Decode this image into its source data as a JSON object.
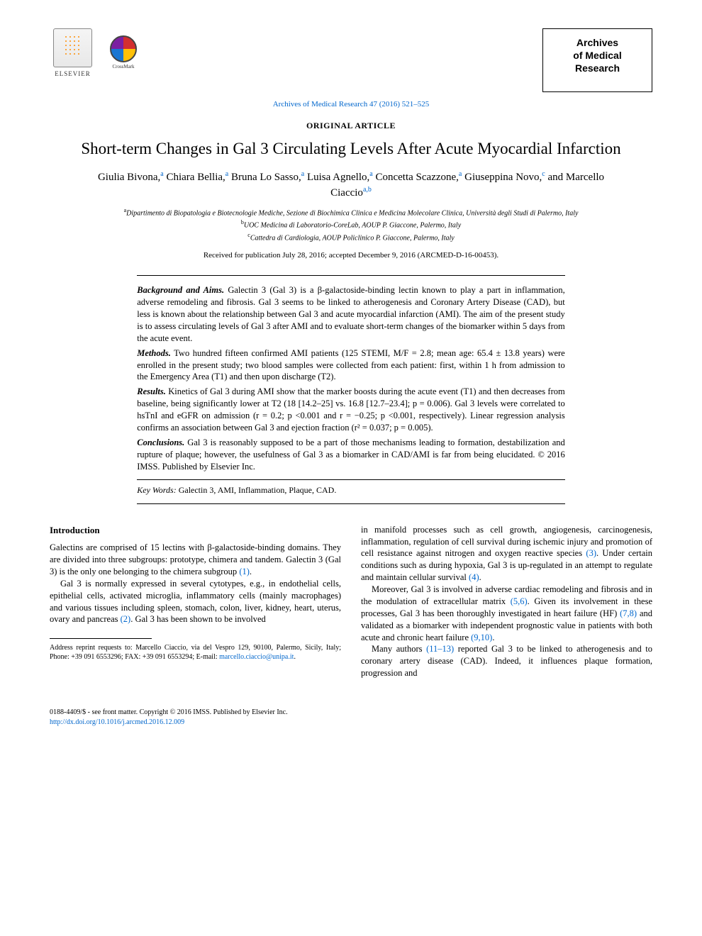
{
  "header": {
    "elsevier_label": "ELSEVIER",
    "crossmark_label": "CrossMark",
    "journal_box_lines": [
      "Archives",
      "of Medical",
      "Research"
    ],
    "citation": "Archives of Medical Research 47 (2016) 521–525"
  },
  "article": {
    "type": "ORIGINAL ARTICLE",
    "title": "Short-term Changes in Gal 3 Circulating Levels After Acute Myocardial Infarction",
    "authors_html": "Giulia Bivona,<sup>a</sup> Chiara Bellia,<sup>a</sup> Bruna Lo Sasso,<sup>a</sup> Luisa Agnello,<sup>a</sup> Concetta Scazzone,<sup>a</sup> Giuseppina Novo,<sup>c</sup> and Marcello Ciaccio<sup>a,b</sup>",
    "affiliations": [
      "<sup>a</sup>Dipartimento di Biopatologia e Biotecnologie Mediche, Sezione di Biochimica Clinica e Medicina Molecolare Clinica, Università degli Studi di Palermo, Italy",
      "<sup>b</sup>UOC Medicina di Laboratorio-CoreLab, AOUP P. Giaccone, Palermo, Italy",
      "<sup>c</sup>Cattedra di Cardiologia, AOUP Policlinico P. Giaccone, Palermo, Italy"
    ],
    "received": "Received for publication July 28, 2016; accepted December 9, 2016 (ARCMED-D-16-00453)."
  },
  "abstract": {
    "background_label": "Background and Aims.",
    "background": " Galectin 3 (Gal 3) is a β-galactoside-binding lectin known to play a part in inflammation, adverse remodeling and fibrosis. Gal 3 seems to be linked to atherogenesis and Coronary Artery Disease (CAD), but less is known about the relationship between Gal 3 and acute myocardial infarction (AMI). The aim of the present study is to assess circulating levels of Gal 3 after AMI and to evaluate short-term changes of the biomarker within 5 days from the acute event.",
    "methods_label": "Methods.",
    "methods": " Two hundred fifteen confirmed AMI patients (125 STEMI, M/F = 2.8; mean age: 65.4 ± 13.8 years) were enrolled in the present study; two blood samples were collected from each patient: first, within 1 h from admission to the Emergency Area (T1) and then upon discharge (T2).",
    "results_label": "Results.",
    "results": " Kinetics of Gal 3 during AMI show that the marker boosts during the acute event (T1) and then decreases from baseline, being significantly lower at T2 (18 [14.2–25] vs. 16.8 [12.7–23.4]; p = 0.006). Gal 3 levels were correlated to hsTnI and eGFR on admission (r = 0.2; p <0.001 and r = −0.25; p <0.001, respectively). Linear regression analysis confirms an association between Gal 3 and ejection fraction (r² = 0.037; p = 0.005).",
    "conclusions_label": "Conclusions.",
    "conclusions": " Gal 3 is reasonably supposed to be a part of those mechanisms leading to formation, destabilization and rupture of plaque; however, the usefulness of Gal 3 as a biomarker in CAD/AMI is far from being elucidated. © 2016 IMSS. Published by Elsevier Inc.",
    "keywords_label": "Key Words:",
    "keywords": " Galectin 3, AMI, Inflammation, Plaque, CAD."
  },
  "body": {
    "intro_heading": "Introduction",
    "left_col": [
      "Galectins are comprised of 15 lectins with β-galactoside-binding domains. They are divided into three subgroups: prototype, chimera and tandem. Galectin 3 (Gal 3) is the only one belonging to the chimera subgroup <span class=\"ref-link\">(1)</span>.",
      "Gal 3 is normally expressed in several cytotypes, e.g., in endothelial cells, epithelial cells, activated microglia, inflammatory cells (mainly macrophages) and various tissues including spleen, stomach, colon, liver, kidney, heart, uterus, ovary and pancreas <span class=\"ref-link\">(2)</span>. Gal 3 has been shown to be involved"
    ],
    "right_col": [
      "in manifold processes such as cell growth, angiogenesis, carcinogenesis, inflammation, regulation of cell survival during ischemic injury and promotion of cell resistance against nitrogen and oxygen reactive species <span class=\"ref-link\">(3)</span>. Under certain conditions such as during hypoxia, Gal 3 is up-regulated in an attempt to regulate and maintain cellular survival <span class=\"ref-link\">(4)</span>.",
      "Moreover, Gal 3 is involved in adverse cardiac remodeling and fibrosis and in the modulation of extracellular matrix <span class=\"ref-link\">(5,6)</span>. Given its involvement in these processes, Gal 3 has been thoroughly investigated in heart failure (HF) <span class=\"ref-link\">(7,8)</span> and validated as a biomarker with independent prognostic value in patients with both acute and chronic heart failure <span class=\"ref-link\">(9,10)</span>.",
      "Many authors <span class=\"ref-link\">(11–13)</span> reported Gal 3 to be linked to atherogenesis and to coronary artery disease (CAD). Indeed, it influences plaque formation, progression and"
    ],
    "footnote": "Address reprint requests to: Marcello Ciaccio, via del Vespro 129, 90100, Palermo, Sicily, Italy; Phone: +39 091 6553296; FAX: +39 091 6553294; E-mail: <span class=\"ref-link\">marcello.ciaccio@unipa.it</span>."
  },
  "footer": {
    "issn": "0188-4409/$ - see front matter. Copyright © 2016 IMSS. Published by Elsevier Inc.",
    "doi": "http://dx.doi.org/10.1016/j.arcmed.2016.12.009"
  },
  "colors": {
    "link": "#0066cc",
    "text": "#000000",
    "background": "#ffffff"
  }
}
